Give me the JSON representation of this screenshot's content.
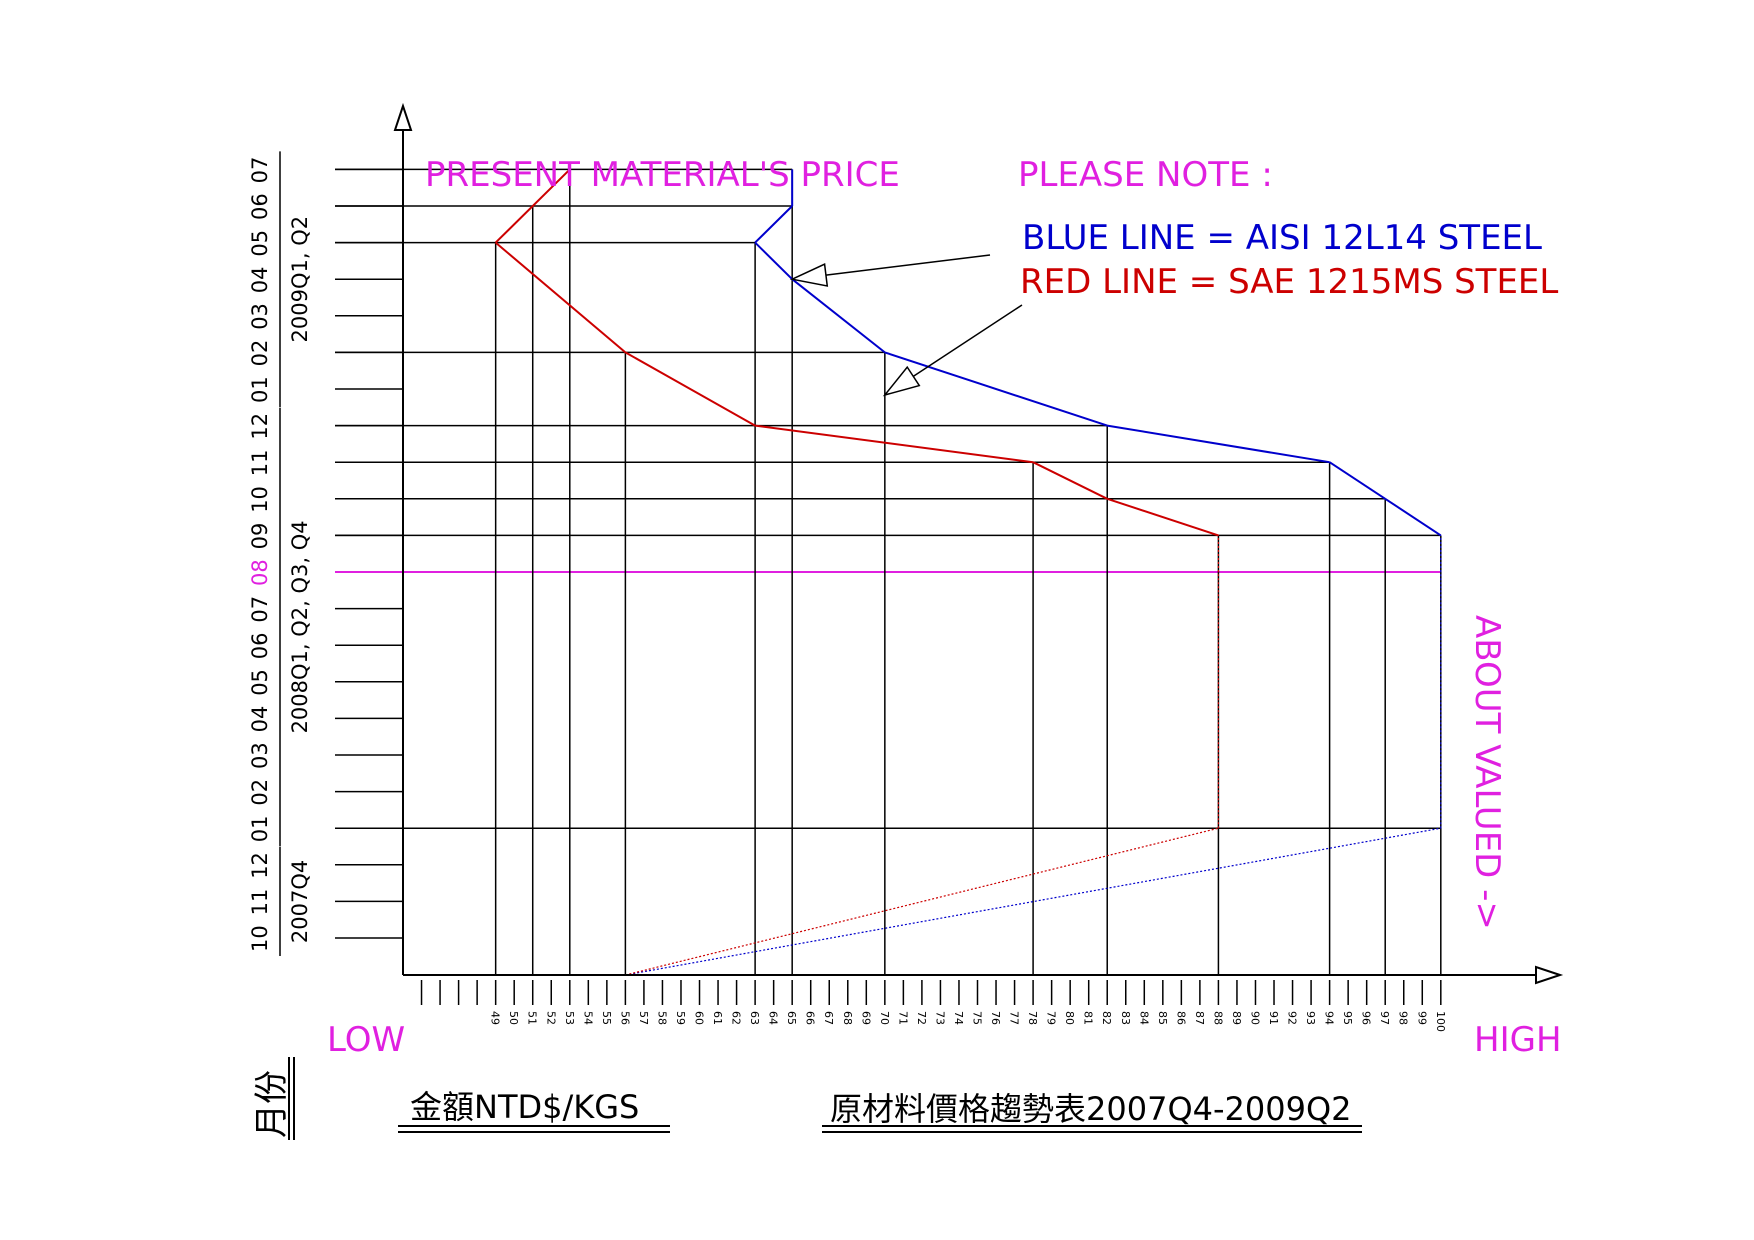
{
  "chart_data": {
    "type": "line",
    "title": "原材料價格趨勢表2007Q4-2009Q2",
    "xlabel": "金額NTD$/KGS",
    "ylabel": "月份",
    "header_left": "PRESENT MATERIAL'S PRICE",
    "note_title": "PLEASE  NOTE  :",
    "note_blue": "BLUE LINE = AISI 12L14 STEEL",
    "note_red": "RED LINE = SAE 1215MS STEEL",
    "x_low_label": "LOW",
    "x_high_label": "HIGH",
    "right_note": "ABOUT VALUED ->",
    "highlight_month": "08",
    "xlim": [
      44,
      106
    ],
    "x_ticks": [
      49,
      50,
      51,
      52,
      53,
      54,
      55,
      56,
      57,
      58,
      59,
      60,
      61,
      62,
      63,
      64,
      65,
      66,
      67,
      68,
      69,
      70,
      71,
      72,
      73,
      74,
      75,
      76,
      77,
      78,
      79,
      80,
      81,
      82,
      83,
      84,
      85,
      86,
      87,
      88,
      89,
      90,
      91,
      92,
      93,
      94,
      95,
      96,
      97,
      98,
      99,
      100
    ],
    "months": [
      {
        "label": "10",
        "period": "2007-10"
      },
      {
        "label": "11",
        "period": "2007-11"
      },
      {
        "label": "12",
        "period": "2007-12"
      },
      {
        "label": "01",
        "period": "2008-01"
      },
      {
        "label": "02",
        "period": "2008-02"
      },
      {
        "label": "03",
        "period": "2008-03"
      },
      {
        "label": "04",
        "period": "2008-04"
      },
      {
        "label": "05",
        "period": "2008-05"
      },
      {
        "label": "06",
        "period": "2008-06"
      },
      {
        "label": "07",
        "period": "2008-07"
      },
      {
        "label": "08",
        "period": "2008-08"
      },
      {
        "label": "09",
        "period": "2008-09"
      },
      {
        "label": "10",
        "period": "2008-10"
      },
      {
        "label": "11",
        "period": "2008-11"
      },
      {
        "label": "12",
        "period": "2008-12"
      },
      {
        "label": "01",
        "period": "2009-01"
      },
      {
        "label": "02",
        "period": "2009-02"
      },
      {
        "label": "03",
        "period": "2009-03"
      },
      {
        "label": "04",
        "period": "2009-04"
      },
      {
        "label": "05",
        "period": "2009-05"
      },
      {
        "label": "06",
        "period": "2009-06"
      },
      {
        "label": "07",
        "period": "2009-07"
      }
    ],
    "month_groups": [
      {
        "label": "2007Q4",
        "from": "2007-10",
        "to": "2007-12"
      },
      {
        "label": "2008Q1, Q2, Q3, Q4",
        "from": "2008-01",
        "to": "2008-12"
      },
      {
        "label": "2009Q1, Q2",
        "from": "2009-01",
        "to": "2009-07"
      }
    ],
    "series": [
      {
        "name": "BLUE LINE = AISI 12L14 STEEL",
        "color": "#0000cc",
        "points": [
          {
            "period": "2007-10",
            "value": 56,
            "style": "dotted"
          },
          {
            "period": "2008-01",
            "value": 100,
            "style": "dotted"
          },
          {
            "period": "2008-08",
            "value": 100,
            "style": "dotted"
          },
          {
            "period": "2008-09",
            "value": 100
          },
          {
            "period": "2008-10",
            "value": 97
          },
          {
            "period": "2008-11",
            "value": 94
          },
          {
            "period": "2008-12",
            "value": 82
          },
          {
            "period": "2009-02",
            "value": 70
          },
          {
            "period": "2009-04",
            "value": 65
          },
          {
            "period": "2009-05",
            "value": 63
          },
          {
            "period": "2009-06",
            "value": 65
          },
          {
            "period": "2009-07",
            "value": 65
          }
        ]
      },
      {
        "name": "RED LINE = SAE 1215MS STEEL",
        "color": "#cc0000",
        "points": [
          {
            "period": "2007-10",
            "value": 56,
            "style": "dotted"
          },
          {
            "period": "2008-01",
            "value": 88,
            "style": "dotted"
          },
          {
            "period": "2008-08",
            "value": 88,
            "style": "dotted"
          },
          {
            "period": "2008-09",
            "value": 88
          },
          {
            "period": "2008-10",
            "value": 82
          },
          {
            "period": "2008-11",
            "value": 78
          },
          {
            "period": "2008-12",
            "value": 63
          },
          {
            "period": "2009-02",
            "value": 56
          },
          {
            "period": "2009-05",
            "value": 49
          },
          {
            "period": "2009-07",
            "value": 53
          }
        ]
      }
    ],
    "grid_rows": [
      {
        "period": "2008-01",
        "to": 100
      },
      {
        "period": "2008-09",
        "to": 100
      },
      {
        "period": "2008-10",
        "to": 97
      },
      {
        "period": "2008-11",
        "to": 94
      },
      {
        "period": "2008-12",
        "to": 82
      },
      {
        "period": "2009-02",
        "to": 70
      },
      {
        "period": "2009-05",
        "to": 63
      },
      {
        "period": "2009-06",
        "to": 65
      },
      {
        "period": "2009-07",
        "to": 65
      }
    ],
    "grid_cols": [
      {
        "value": 49,
        "to": "2009-05"
      },
      {
        "value": 51,
        "to": "2009-06"
      },
      {
        "value": 53,
        "to": "2009-07"
      },
      {
        "value": 56,
        "to": "2009-02"
      },
      {
        "value": 63,
        "to": "2009-05"
      },
      {
        "value": 65,
        "to": "2009-07"
      },
      {
        "value": 70,
        "to": "2009-02"
      },
      {
        "value": 78,
        "to": "2008-11"
      },
      {
        "value": 82,
        "to": "2008-12"
      },
      {
        "value": 88,
        "to": "2008-09"
      },
      {
        "value": 94,
        "to": "2008-11"
      },
      {
        "value": 97,
        "to": "2008-10"
      },
      {
        "value": 100,
        "to": "2008-09"
      }
    ],
    "arrows": [
      {
        "target_series": "blue",
        "target_period": "2009-04",
        "target_value": 65
      },
      {
        "target_series": "red",
        "target_period": "2009-01",
        "target_value": 70
      }
    ],
    "colors": {
      "axis": "#000000",
      "highlight": "#e020e0",
      "blue": "#0000cc",
      "red": "#cc0000"
    }
  }
}
